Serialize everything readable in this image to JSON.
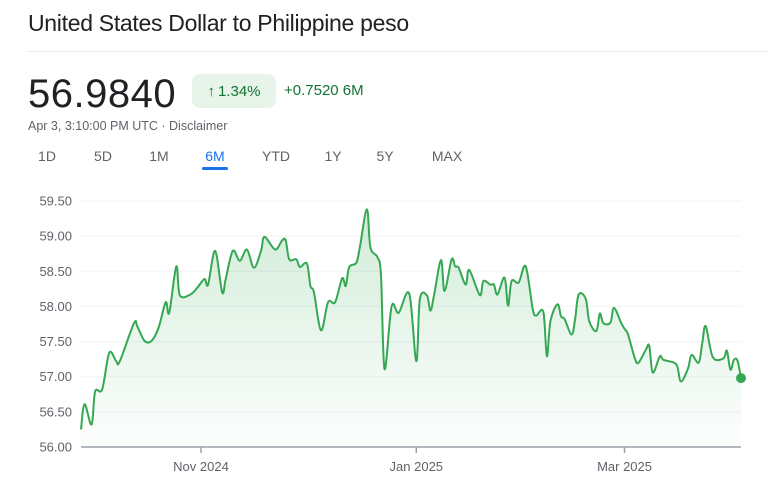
{
  "header": {
    "title": "United States Dollar to Philippine peso"
  },
  "quote": {
    "price": "56.9840",
    "change_percent": "1.34%",
    "change_icon": "arrow-up-icon",
    "change_abs": "+0.7520 6M",
    "timestamp": "Apr 3, 3:10:00 PM UTC · Disclaimer"
  },
  "range_tabs": [
    {
      "label": "1D"
    },
    {
      "label": "5D"
    },
    {
      "label": "1M"
    },
    {
      "label": "6M",
      "active": true
    },
    {
      "label": "YTD"
    },
    {
      "label": "1Y"
    },
    {
      "label": "5Y"
    },
    {
      "label": "MAX"
    }
  ],
  "colors": {
    "positive": "#137333",
    "line": "#34a853",
    "accent": "#1a73e8"
  },
  "chart_data": {
    "type": "area",
    "xlim": [
      "2024-09-28",
      "2025-04-03"
    ],
    "ylim": [
      56.0,
      59.5
    ],
    "y_ticks": [
      "56.00",
      "56.50",
      "57.00",
      "57.50",
      "58.00",
      "58.50",
      "59.00",
      "59.50"
    ],
    "x_ticks": [
      {
        "date": "2024-11-01",
        "label": "Nov 2024"
      },
      {
        "date": "2025-01-01",
        "label": "Jan 2025"
      },
      {
        "date": "2025-03-01",
        "label": "Mar 2025"
      }
    ],
    "grid": true,
    "series": [
      {
        "points": [
          [
            "2024-09-28",
            56.25
          ],
          [
            "2024-09-29",
            56.61
          ],
          [
            "2024-10-01",
            56.32
          ],
          [
            "2024-10-02",
            56.79
          ],
          [
            "2024-10-04",
            56.82
          ],
          [
            "2024-10-06",
            57.34
          ],
          [
            "2024-10-08",
            57.22
          ],
          [
            "2024-10-09",
            57.22
          ],
          [
            "2024-10-13",
            57.76
          ],
          [
            "2024-10-14",
            57.71
          ],
          [
            "2024-10-16",
            57.51
          ],
          [
            "2024-10-18",
            57.51
          ],
          [
            "2024-10-20",
            57.7
          ],
          [
            "2024-10-22",
            58.06
          ],
          [
            "2024-10-23",
            57.91
          ],
          [
            "2024-10-25",
            58.57
          ],
          [
            "2024-10-26",
            58.16
          ],
          [
            "2024-10-29",
            58.17
          ],
          [
            "2024-10-31",
            58.27
          ],
          [
            "2024-11-02",
            58.39
          ],
          [
            "2024-11-03",
            58.31
          ],
          [
            "2024-11-05",
            58.79
          ],
          [
            "2024-11-07",
            58.2
          ],
          [
            "2024-11-08",
            58.39
          ],
          [
            "2024-11-10",
            58.79
          ],
          [
            "2024-11-12",
            58.65
          ],
          [
            "2024-11-14",
            58.81
          ],
          [
            "2024-11-16",
            58.55
          ],
          [
            "2024-11-18",
            58.79
          ],
          [
            "2024-11-19",
            58.99
          ],
          [
            "2024-11-22",
            58.81
          ],
          [
            "2024-11-24",
            58.94
          ],
          [
            "2024-11-25",
            58.94
          ],
          [
            "2024-11-26",
            58.67
          ],
          [
            "2024-11-28",
            58.67
          ],
          [
            "2024-11-29",
            58.56
          ],
          [
            "2024-12-01",
            58.61
          ],
          [
            "2024-12-02",
            58.29
          ],
          [
            "2024-12-03",
            58.2
          ],
          [
            "2024-12-05",
            57.66
          ],
          [
            "2024-12-07",
            58.06
          ],
          [
            "2024-12-09",
            58.06
          ],
          [
            "2024-12-11",
            58.4
          ],
          [
            "2024-12-12",
            58.29
          ],
          [
            "2024-12-13",
            58.56
          ],
          [
            "2024-12-15",
            58.62
          ],
          [
            "2024-12-16",
            58.84
          ],
          [
            "2024-12-18",
            59.38
          ],
          [
            "2024-12-19",
            58.84
          ],
          [
            "2024-12-21",
            58.7
          ],
          [
            "2024-12-22",
            58.44
          ],
          [
            "2024-12-23",
            57.11
          ],
          [
            "2024-12-25",
            58.0
          ],
          [
            "2024-12-27",
            57.91
          ],
          [
            "2024-12-30",
            58.18
          ],
          [
            "2025-01-01",
            57.22
          ],
          [
            "2025-01-02",
            58.1
          ],
          [
            "2025-01-04",
            58.16
          ],
          [
            "2025-01-05",
            57.94
          ],
          [
            "2025-01-06",
            58.15
          ],
          [
            "2025-01-08",
            58.66
          ],
          [
            "2025-01-09",
            58.22
          ],
          [
            "2025-01-11",
            58.67
          ],
          [
            "2025-01-12",
            58.57
          ],
          [
            "2025-01-13",
            58.55
          ],
          [
            "2025-01-15",
            58.31
          ],
          [
            "2025-01-16",
            58.52
          ],
          [
            "2025-01-19",
            58.16
          ],
          [
            "2025-01-20",
            58.36
          ],
          [
            "2025-01-22",
            58.31
          ],
          [
            "2025-01-23",
            58.31
          ],
          [
            "2025-01-24",
            58.17
          ],
          [
            "2025-01-26",
            58.41
          ],
          [
            "2025-01-27",
            58.01
          ],
          [
            "2025-01-28",
            58.36
          ],
          [
            "2025-01-30",
            58.34
          ],
          [
            "2025-02-01",
            58.57
          ],
          [
            "2025-02-03",
            57.96
          ],
          [
            "2025-02-04",
            57.87
          ],
          [
            "2025-02-06",
            57.92
          ],
          [
            "2025-02-07",
            57.29
          ],
          [
            "2025-02-08",
            57.79
          ],
          [
            "2025-02-10",
            58.03
          ],
          [
            "2025-02-11",
            57.86
          ],
          [
            "2025-02-12",
            57.82
          ],
          [
            "2025-02-14",
            57.6
          ],
          [
            "2025-02-15",
            57.82
          ],
          [
            "2025-02-16",
            58.17
          ],
          [
            "2025-02-18",
            58.11
          ],
          [
            "2025-02-19",
            57.79
          ],
          [
            "2025-02-21",
            57.65
          ],
          [
            "2025-02-22",
            57.9
          ],
          [
            "2025-02-23",
            57.76
          ],
          [
            "2025-02-25",
            57.77
          ],
          [
            "2025-02-26",
            57.98
          ],
          [
            "2025-02-28",
            57.77
          ],
          [
            "2025-03-01",
            57.68
          ],
          [
            "2025-03-02",
            57.6
          ],
          [
            "2025-03-04",
            57.25
          ],
          [
            "2025-03-05",
            57.2
          ],
          [
            "2025-03-07",
            57.38
          ],
          [
            "2025-03-08",
            57.44
          ],
          [
            "2025-03-09",
            57.06
          ],
          [
            "2025-03-11",
            57.29
          ],
          [
            "2025-03-12",
            57.24
          ],
          [
            "2025-03-15",
            57.2
          ],
          [
            "2025-03-16",
            57.14
          ],
          [
            "2025-03-17",
            56.93
          ],
          [
            "2025-03-19",
            57.12
          ],
          [
            "2025-03-20",
            57.31
          ],
          [
            "2025-03-22",
            57.2
          ],
          [
            "2025-03-23",
            57.47
          ],
          [
            "2025-03-24",
            57.72
          ],
          [
            "2025-03-26",
            57.28
          ],
          [
            "2025-03-29",
            57.26
          ],
          [
            "2025-03-30",
            57.37
          ],
          [
            "2025-03-31",
            57.1
          ],
          [
            "2025-04-01",
            57.24
          ],
          [
            "2025-04-02",
            57.23
          ],
          [
            "2025-04-03",
            56.98
          ]
        ]
      }
    ]
  }
}
